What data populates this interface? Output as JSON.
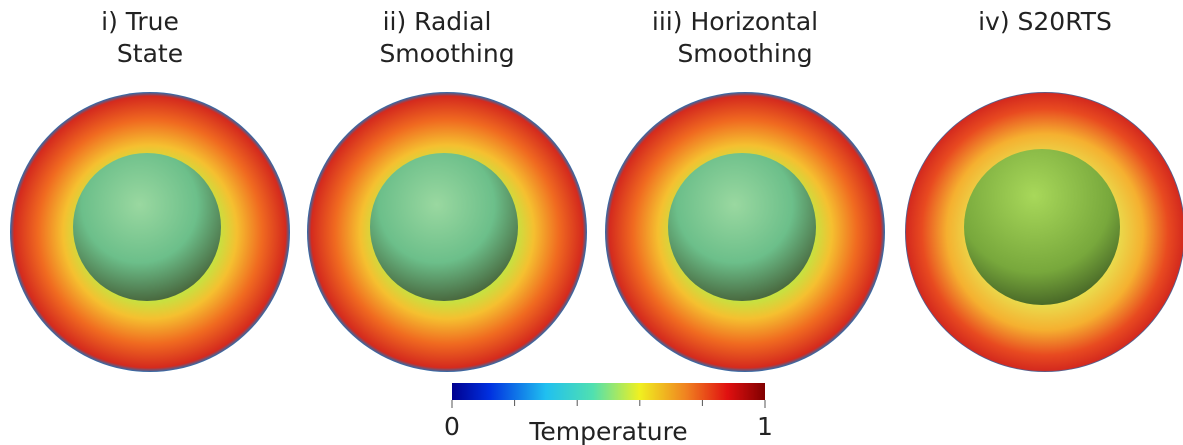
{
  "panels": [
    {
      "title_lines": [
        "i) True",
        "State"
      ]
    },
    {
      "title_lines": [
        "ii) Radial",
        "Smoothing"
      ]
    },
    {
      "title_lines": [
        "iii) Horizontal",
        "Smoothing"
      ]
    },
    {
      "title_lines": [
        "iv) S20RTS"
      ]
    }
  ],
  "colorbar": {
    "label": "Temperature",
    "range": [
      0,
      1
    ],
    "ticks": [
      0,
      1
    ],
    "minor_ticks": [
      0.2,
      0.4,
      0.6,
      0.8
    ]
  }
}
